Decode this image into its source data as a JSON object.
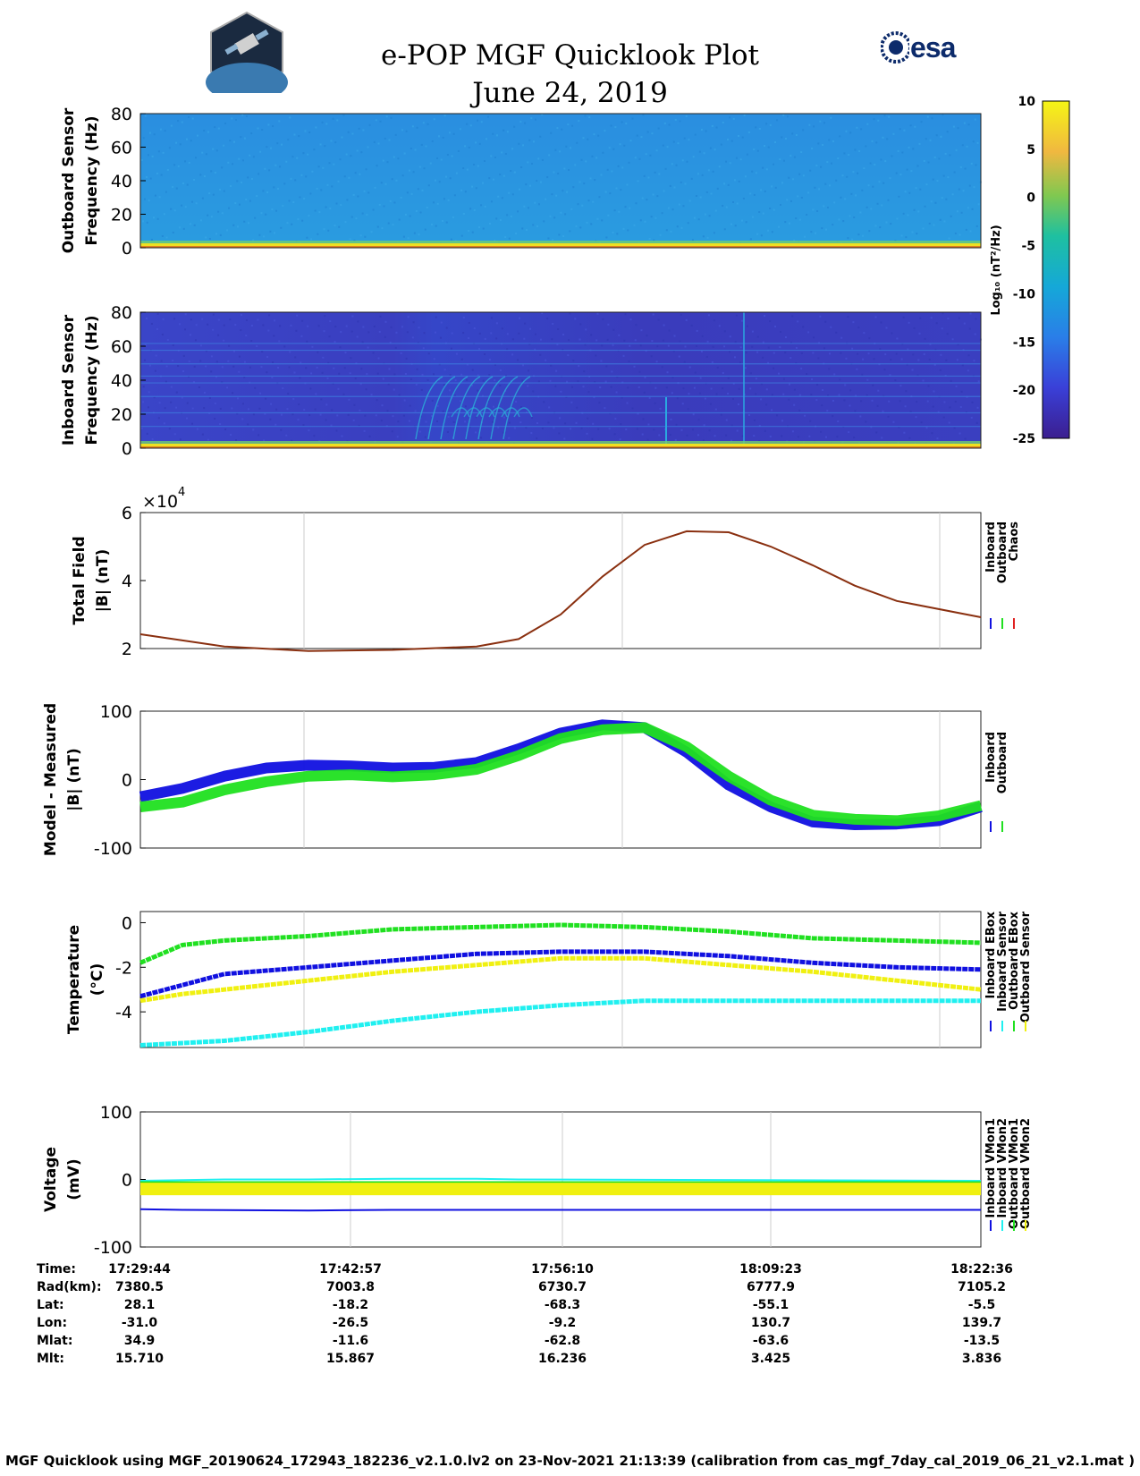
{
  "header": {
    "title": "e-POP MGF Quicklook Plot",
    "date": "June 24, 2019",
    "esa_logo_text": "esa"
  },
  "colorbar": {
    "ticks": [
      "10",
      "5",
      "0",
      "-5",
      "-10",
      "-15",
      "-20",
      "-25"
    ],
    "label": "Log₁₀ (nT²/Hz)"
  },
  "chart_data": [
    {
      "type": "heatmap",
      "ylabel": [
        "Outboard Sensor",
        "Frequency (Hz)"
      ],
      "yticks": [
        "80",
        "60",
        "40",
        "20",
        "0"
      ],
      "ylim": [
        0,
        80
      ],
      "clim": [
        -25,
        10
      ]
    },
    {
      "type": "heatmap",
      "ylabel": [
        "Inboard Sensor",
        "Frequency (Hz)"
      ],
      "yticks": [
        "80",
        "60",
        "40",
        "20",
        "0"
      ],
      "ylim": [
        0,
        80
      ],
      "clim": [
        -25,
        10
      ]
    },
    {
      "type": "line",
      "ylabel": [
        "Total Field",
        "|B| (nT)"
      ],
      "yticks": [
        "6",
        "4",
        "2"
      ],
      "ylim": [
        2,
        6
      ],
      "exponent": "×10",
      "exponent_power": "4",
      "legend": [
        "Inboard",
        "Outboard",
        "Chaos"
      ],
      "series_colors": [
        "#1010e0",
        "#20e020",
        "#e02020"
      ],
      "x": [
        0,
        0.1,
        0.2,
        0.3,
        0.4,
        0.45,
        0.5,
        0.55,
        0.6,
        0.65,
        0.7,
        0.75,
        0.8,
        0.85,
        0.9,
        1.0
      ],
      "values": [
        2.42,
        2.06,
        1.93,
        1.96,
        2.06,
        2.28,
        3.0,
        4.12,
        5.05,
        5.45,
        5.42,
        5.0,
        4.45,
        3.85,
        3.4,
        2.92
      ]
    },
    {
      "type": "line",
      "ylabel": [
        "Model - Measured",
        "|B| (nT)"
      ],
      "yticks": [
        "100",
        "0",
        "-100"
      ],
      "ylim": [
        -100,
        100
      ],
      "legend": [
        "Inboard",
        "Outboard"
      ],
      "series": [
        {
          "name": "Inboard",
          "color": "#1010e0",
          "x": [
            0,
            0.05,
            0.1,
            0.15,
            0.2,
            0.25,
            0.3,
            0.35,
            0.4,
            0.45,
            0.5,
            0.55,
            0.6,
            0.65,
            0.7,
            0.75,
            0.8,
            0.85,
            0.9,
            0.95,
            1.0
          ],
          "y": [
            -25,
            -13,
            5,
            17,
            21,
            20,
            17,
            18,
            25,
            45,
            68,
            80,
            76,
            40,
            -8,
            -40,
            -62,
            -66,
            -65,
            -60,
            -40
          ]
        },
        {
          "name": "Outboard",
          "color": "#20e020",
          "x": [
            0,
            0.05,
            0.1,
            0.15,
            0.2,
            0.25,
            0.3,
            0.35,
            0.4,
            0.45,
            0.5,
            0.55,
            0.6,
            0.65,
            0.7,
            0.75,
            0.8,
            0.85,
            0.9,
            0.95,
            1.0
          ],
          "y": [
            -40,
            -33,
            -15,
            -3,
            5,
            7,
            4,
            7,
            15,
            35,
            60,
            73,
            76,
            48,
            5,
            -30,
            -52,
            -58,
            -60,
            -53,
            -38
          ]
        }
      ]
    },
    {
      "type": "line",
      "ylabel": [
        "Temperature",
        "(°C)"
      ],
      "yticks": [
        "0",
        "-2",
        "-4"
      ],
      "ylim": [
        -5.6,
        0.5
      ],
      "legend": [
        "Inboard EBox",
        "Inboard Sensor",
        "Outboard EBox",
        "Outboard Sensor"
      ],
      "series": [
        {
          "name": "Inboard EBox",
          "color": "#1010e0",
          "x": [
            0,
            0.05,
            0.1,
            0.2,
            0.3,
            0.4,
            0.5,
            0.6,
            0.7,
            0.8,
            0.9,
            1.0
          ],
          "y": [
            -3.3,
            -2.8,
            -2.3,
            -2.0,
            -1.7,
            -1.4,
            -1.3,
            -1.3,
            -1.5,
            -1.8,
            -2.0,
            -2.1
          ]
        },
        {
          "name": "Inboard Sensor",
          "color": "#20f0f0",
          "x": [
            0,
            0.1,
            0.2,
            0.3,
            0.4,
            0.5,
            0.6,
            0.7,
            0.8,
            0.9,
            1.0
          ],
          "y": [
            -5.5,
            -5.3,
            -4.9,
            -4.4,
            -4.0,
            -3.7,
            -3.5,
            -3.5,
            -3.5,
            -3.5,
            -3.5
          ]
        },
        {
          "name": "Outboard EBox",
          "color": "#20e020",
          "x": [
            0,
            0.05,
            0.1,
            0.2,
            0.3,
            0.4,
            0.5,
            0.6,
            0.7,
            0.8,
            0.9,
            1.0
          ],
          "y": [
            -1.8,
            -1.0,
            -0.8,
            -0.6,
            -0.3,
            -0.2,
            -0.1,
            -0.2,
            -0.4,
            -0.7,
            -0.8,
            -0.9
          ]
        },
        {
          "name": "Outboard Sensor",
          "color": "#f0f010",
          "x": [
            0,
            0.05,
            0.1,
            0.2,
            0.3,
            0.4,
            0.5,
            0.6,
            0.7,
            0.8,
            0.9,
            1.0
          ],
          "y": [
            -3.5,
            -3.2,
            -3.0,
            -2.6,
            -2.2,
            -1.9,
            -1.6,
            -1.6,
            -1.9,
            -2.2,
            -2.6,
            -3.0
          ]
        }
      ]
    },
    {
      "type": "line",
      "ylabel": [
        "Voltage",
        "(mV)"
      ],
      "yticks": [
        "100",
        "0",
        "-100"
      ],
      "ylim": [
        -100,
        100
      ],
      "legend": [
        "Inboard VMon1",
        "Inboard VMon2",
        "Outboard VMon1",
        "Outboard VMon2"
      ],
      "series": [
        {
          "name": "Inboard VMon1",
          "color": "#1010e0",
          "x": [
            0,
            0.05,
            0.2,
            0.3,
            0.5,
            0.7,
            0.9,
            1.0
          ],
          "y": [
            -44,
            -45,
            -46,
            -45,
            -45,
            -45,
            -45,
            -45
          ]
        },
        {
          "name": "Inboard VMon2",
          "color": "#20f0f0",
          "x": [
            0,
            0.1,
            0.2,
            0.3,
            0.4,
            0.45,
            1.0
          ],
          "y": [
            -2,
            0,
            0,
            1,
            1,
            0,
            -2
          ]
        },
        {
          "name": "Outboard VMon1",
          "color": "#20e020",
          "x": [
            0,
            0.5,
            1.0
          ],
          "y": [
            -8,
            -8,
            -8
          ]
        },
        {
          "name": "Outboard VMon2",
          "color": "#f0f010",
          "x": [
            0,
            0.5,
            1.0
          ],
          "y": [
            -14,
            -14,
            -14
          ]
        }
      ]
    }
  ],
  "time_table": {
    "labels": [
      "Time:",
      "Rad(km):",
      "Lat:",
      "Lon:",
      "Mlat:",
      "Mlt:"
    ],
    "columns": [
      [
        "17:29:44",
        "7380.5",
        "28.1",
        "-31.0",
        "34.9",
        "15.710"
      ],
      [
        "17:42:57",
        "7003.8",
        "-18.2",
        "-26.5",
        "-11.6",
        "15.867"
      ],
      [
        "17:56:10",
        "6730.7",
        "-68.3",
        "-9.2",
        "-62.8",
        "16.236"
      ],
      [
        "18:09:23",
        "6777.9",
        "-55.1",
        "130.7",
        "-63.6",
        "3.425"
      ],
      [
        "18:22:36",
        "7105.2",
        "-5.5",
        "139.7",
        "-13.5",
        "3.836"
      ]
    ]
  },
  "footer": "MGF Quicklook using MGF_20190624_172943_182236_v2.1.0.lv2 on 23-Nov-2021 21:13:39 (calibration from cas_mgf_7day_cal_2019_06_21_v2.1.mat )"
}
